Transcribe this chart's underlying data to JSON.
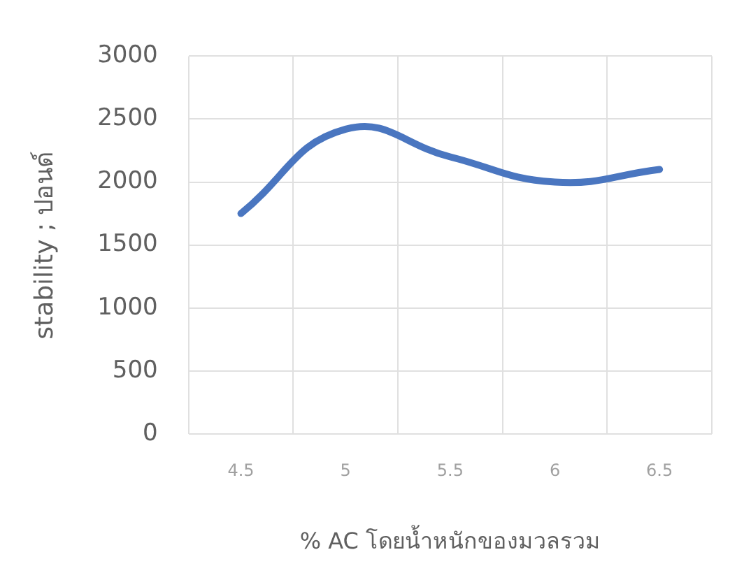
{
  "chart_data": {
    "type": "line",
    "xlabel": "% AC โดยน้ำหนักของมวลรวม",
    "ylabel": "stability ; ปอนด์",
    "categories": [
      "4.5",
      "5",
      "5.5",
      "6",
      "6.5"
    ],
    "series": [
      {
        "color": "#4a76c0",
        "values": [
          1750,
          2420,
          2200,
          2000,
          2100
        ]
      }
    ],
    "ylim": [
      0,
      3000
    ],
    "yticks": [
      0,
      500,
      1000,
      1500,
      2000,
      2500,
      3000
    ],
    "grid": true,
    "legend": false,
    "marker": "none",
    "line_style": "solid"
  }
}
